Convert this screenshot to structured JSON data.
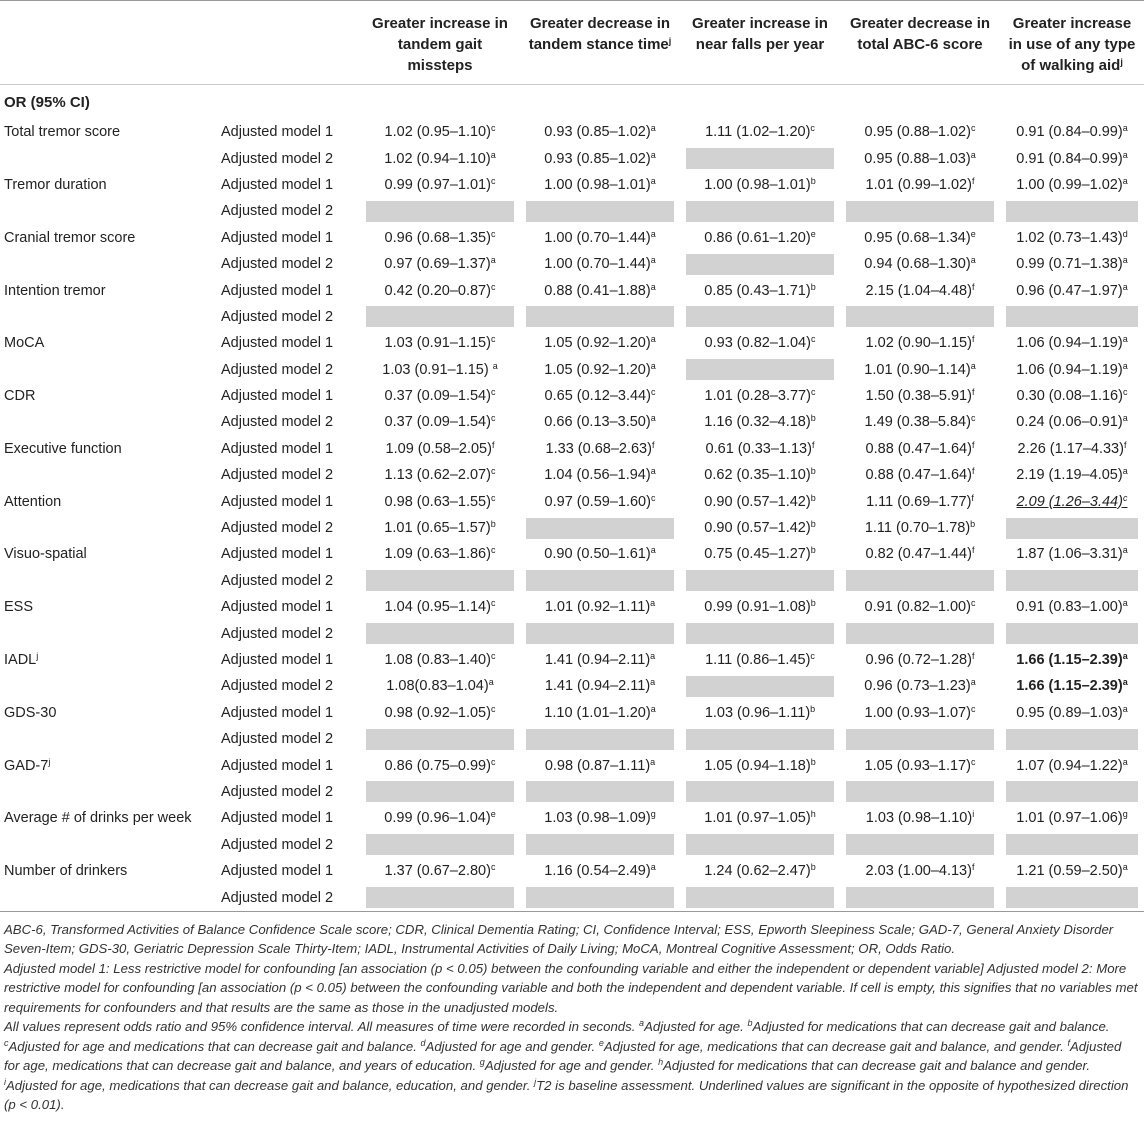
{
  "table": {
    "header": {
      "columns": [
        {
          "text": "Greater increase in tandem gait missteps"
        },
        {
          "text": "Greater decrease in tandem stance time",
          "sup": "j"
        },
        {
          "text": "Greater increase in near falls per year"
        },
        {
          "text": "Greater decrease in total ABC-6 score"
        },
        {
          "text": "Greater increase in use of any type of walking aid",
          "sup": "j"
        }
      ],
      "section": "OR (95% CI)"
    },
    "variables": [
      {
        "label": "Total tremor score",
        "rows": [
          {
            "model": "Adjusted model 1",
            "cells": [
              [
                "1.02 (0.95–1.10)",
                "c"
              ],
              [
                "0.93 (0.85–1.02)",
                "a"
              ],
              [
                "1.11 (1.02–1.20)",
                "c"
              ],
              [
                "0.95 (0.88–1.02)",
                "c"
              ],
              [
                "0.91 (0.84–0.99)",
                "a"
              ]
            ]
          },
          {
            "model": "Adjusted model 2",
            "cells": [
              [
                "1.02 (0.94–1.10)",
                "a"
              ],
              [
                "0.93 (0.85–1.02)",
                "a"
              ],
              null,
              [
                "0.95 (0.88–1.03)",
                "a"
              ],
              [
                "0.91 (0.84–0.99)",
                "a"
              ]
            ]
          }
        ]
      },
      {
        "label": "Tremor duration",
        "rows": [
          {
            "model": "Adjusted model 1",
            "cells": [
              [
                "0.99 (0.97–1.01)",
                "c"
              ],
              [
                "1.00 (0.98–1.01)",
                "a"
              ],
              [
                "1.00 (0.98–1.01)",
                "b"
              ],
              [
                "1.01 (0.99–1.02)",
                "f"
              ],
              [
                "1.00 (0.99–1.02)",
                "a"
              ]
            ]
          },
          {
            "model": "Adjusted model 2",
            "cells": [
              null,
              null,
              null,
              null,
              null
            ]
          }
        ]
      },
      {
        "label": "Cranial tremor score",
        "rows": [
          {
            "model": "Adjusted model 1",
            "cells": [
              [
                "0.96 (0.68–1.35)",
                "c"
              ],
              [
                "1.00 (0.70–1.44)",
                "a"
              ],
              [
                "0.86 (0.61–1.20)",
                "e"
              ],
              [
                "0.95 (0.68–1.34)",
                "e"
              ],
              [
                "1.02 (0.73–1.43)",
                "d"
              ]
            ]
          },
          {
            "model": "Adjusted model 2",
            "cells": [
              [
                "0.97 (0.69–1.37)",
                "a"
              ],
              [
                "1.00 (0.70–1.44)",
                "a"
              ],
              null,
              [
                "0.94 (0.68–1.30)",
                "a"
              ],
              [
                "0.99 (0.71–1.38)",
                "a"
              ]
            ]
          }
        ]
      },
      {
        "label": "Intention tremor",
        "rows": [
          {
            "model": "Adjusted model 1",
            "cells": [
              [
                "0.42 (0.20–0.87)",
                "c"
              ],
              [
                "0.88 (0.41–1.88)",
                "a"
              ],
              [
                "0.85 (0.43–1.71)",
                "b"
              ],
              [
                "2.15 (1.04–4.48)",
                "f"
              ],
              [
                "0.96 (0.47–1.97)",
                "a"
              ]
            ]
          },
          {
            "model": "Adjusted model 2",
            "cells": [
              null,
              null,
              null,
              null,
              null
            ]
          }
        ]
      },
      {
        "label": "MoCA",
        "rows": [
          {
            "model": "Adjusted model 1",
            "cells": [
              [
                "1.03 (0.91–1.15)",
                "c"
              ],
              [
                "1.05 (0.92–1.20)",
                "a"
              ],
              [
                "0.93 (0.82–1.04)",
                "c"
              ],
              [
                "1.02 (0.90–1.15)",
                "f"
              ],
              [
                "1.06 (0.94–1.19)",
                "a"
              ]
            ]
          },
          {
            "model": "Adjusted model 2",
            "cells": [
              [
                "1.03 (0.91–1.15) ",
                "a"
              ],
              [
                "1.05 (0.92–1.20)",
                "a"
              ],
              null,
              [
                "1.01 (0.90–1.14)",
                "a"
              ],
              [
                "1.06 (0.94–1.19)",
                "a"
              ]
            ]
          }
        ]
      },
      {
        "label": "CDR",
        "rows": [
          {
            "model": "Adjusted model 1",
            "cells": [
              [
                "0.37 (0.09–1.54)",
                "c"
              ],
              [
                "0.65 (0.12–3.44)",
                "c"
              ],
              [
                "1.01 (0.28–3.77)",
                "c"
              ],
              [
                "1.50 (0.38–5.91)",
                "f"
              ],
              [
                "0.30 (0.08–1.16)",
                "c"
              ]
            ]
          },
          {
            "model": "Adjusted model 2",
            "cells": [
              [
                "0.37 (0.09–1.54)",
                "c"
              ],
              [
                "0.66 (0.13–3.50)",
                "a"
              ],
              [
                "1.16 (0.32–4.18)",
                "b"
              ],
              [
                "1.49 (0.38–5.84)",
                "c"
              ],
              [
                "0.24 (0.06–0.91)",
                "a"
              ]
            ]
          }
        ]
      },
      {
        "label": "Executive function",
        "rows": [
          {
            "model": "Adjusted model 1",
            "cells": [
              [
                "1.09 (0.58–2.05)",
                "f"
              ],
              [
                "1.33 (0.68–2.63)",
                "f"
              ],
              [
                "0.61 (0.33–1.13)",
                "f"
              ],
              [
                "0.88 (0.47–1.64)",
                "f"
              ],
              [
                "2.26 (1.17–4.33)",
                "f"
              ]
            ]
          },
          {
            "model": "Adjusted model 2",
            "cells": [
              [
                "1.13 (0.62–2.07)",
                "c"
              ],
              [
                "1.04 (0.56–1.94)",
                "a"
              ],
              [
                "0.62 (0.35–1.10)",
                "b"
              ],
              [
                "0.88 (0.47–1.64)",
                "f"
              ],
              [
                "2.19 (1.19–4.05)",
                "a"
              ]
            ]
          }
        ]
      },
      {
        "label": "Attention",
        "rows": [
          {
            "model": "Adjusted model 1",
            "cells": [
              [
                "0.98 (0.63–1.55)",
                "c"
              ],
              [
                "0.97 (0.59–1.60)",
                "c"
              ],
              [
                "0.90 (0.57–1.42)",
                "b"
              ],
              [
                "1.11 (0.69–1.77)",
                "f"
              ],
              [
                "2.09 (1.26–3.44)",
                "c",
                "underline"
              ]
            ]
          },
          {
            "model": "Adjusted model 2",
            "cells": [
              [
                "1.01 (0.65–1.57)",
                "b"
              ],
              null,
              [
                "0.90 (0.57–1.42)",
                "b"
              ],
              [
                "1.11 (0.70–1.78)",
                "b"
              ],
              null
            ]
          }
        ]
      },
      {
        "label": "Visuo-spatial",
        "rows": [
          {
            "model": "Adjusted model 1",
            "cells": [
              [
                "1.09 (0.63–1.86)",
                "c"
              ],
              [
                "0.90 (0.50–1.61)",
                "a"
              ],
              [
                "0.75 (0.45–1.27)",
                "b"
              ],
              [
                "0.82 (0.47–1.44)",
                "f"
              ],
              [
                "1.87 (1.06–3.31)",
                "a"
              ]
            ]
          },
          {
            "model": "Adjusted model 2",
            "cells": [
              null,
              null,
              null,
              null,
              null
            ]
          }
        ]
      },
      {
        "label": "ESS",
        "rows": [
          {
            "model": "Adjusted model 1",
            "cells": [
              [
                "1.04 (0.95–1.14)",
                "c"
              ],
              [
                "1.01 (0.92–1.11)",
                "a"
              ],
              [
                "0.99 (0.91–1.08)",
                "b"
              ],
              [
                "0.91 (0.82–1.00)",
                "c"
              ],
              [
                "0.91 (0.83–1.00)",
                "a"
              ]
            ]
          },
          {
            "model": "Adjusted model 2",
            "cells": [
              null,
              null,
              null,
              null,
              null
            ]
          }
        ]
      },
      {
        "label": "IADL",
        "label_sup": "j",
        "rows": [
          {
            "model": "Adjusted model 1",
            "cells": [
              [
                "1.08 (0.83–1.40)",
                "c"
              ],
              [
                "1.41 (0.94–2.11)",
                "a"
              ],
              [
                "1.11 (0.86–1.45)",
                "c"
              ],
              [
                "0.96 (0.72–1.28)",
                "f"
              ],
              [
                "1.66 (1.15–2.39)",
                "a",
                "bold"
              ]
            ]
          },
          {
            "model": "Adjusted model 2",
            "cells": [
              [
                "1.08(0.83–1.04)",
                "a"
              ],
              [
                "1.41 (0.94–2.11)",
                "a"
              ],
              null,
              [
                "0.96 (0.73–1.23)",
                "a"
              ],
              [
                "1.66 (1.15–2.39)",
                "a",
                "bold"
              ]
            ]
          }
        ]
      },
      {
        "label": "GDS-30",
        "rows": [
          {
            "model": "Adjusted model 1",
            "cells": [
              [
                "0.98 (0.92–1.05)",
                "c"
              ],
              [
                "1.10 (1.01–1.20)",
                "a"
              ],
              [
                "1.03 (0.96–1.11)",
                "b"
              ],
              [
                "1.00 (0.93–1.07)",
                "c"
              ],
              [
                "0.95 (0.89–1.03)",
                "a"
              ]
            ]
          },
          {
            "model": "Adjusted model 2",
            "cells": [
              null,
              null,
              null,
              null,
              null
            ]
          }
        ]
      },
      {
        "label": "GAD-7",
        "label_sup": "j",
        "rows": [
          {
            "model": "Adjusted model 1",
            "cells": [
              [
                "0.86 (0.75–0.99)",
                "c"
              ],
              [
                "0.98 (0.87–1.11)",
                "a"
              ],
              [
                "1.05 (0.94–1.18)",
                "b"
              ],
              [
                "1.05 (0.93–1.17)",
                "c"
              ],
              [
                "1.07 (0.94–1.22)",
                "a"
              ]
            ]
          },
          {
            "model": "Adjusted model 2",
            "cells": [
              null,
              null,
              null,
              null,
              null
            ]
          }
        ]
      },
      {
        "label": "Average # of drinks per week",
        "rows": [
          {
            "model": "Adjusted model 1",
            "cells": [
              [
                "0.99 (0.96–1.04)",
                "e"
              ],
              [
                "1.03 (0.98–1.09)",
                "g"
              ],
              [
                "1.01 (0.97–1.05)",
                "h"
              ],
              [
                "1.03 (0.98–1.10)",
                "i"
              ],
              [
                "1.01 (0.97–1.06)",
                "g"
              ]
            ]
          },
          {
            "model": "Adjusted model 2",
            "cells": [
              null,
              null,
              null,
              null,
              null
            ]
          }
        ]
      },
      {
        "label": "Number of drinkers",
        "rows": [
          {
            "model": "Adjusted model 1",
            "cells": [
              [
                "1.37 (0.67–2.80)",
                "c"
              ],
              [
                "1.16 (0.54–2.49)",
                "a"
              ],
              [
                "1.24 (0.62–2.47)",
                "b"
              ],
              [
                "2.03 (1.00–4.13)",
                "f"
              ],
              [
                "1.21 (0.59–2.50)",
                "a"
              ]
            ]
          },
          {
            "model": "Adjusted model 2",
            "cells": [
              null,
              null,
              null,
              null,
              null
            ]
          }
        ]
      }
    ]
  },
  "footnotes": {
    "abbreviations": "ABC-6, Transformed Activities of Balance Confidence Scale score; CDR, Clinical Dementia Rating; CI, Confidence Interval; ESS, Epworth Sleepiness Scale; GAD-7, General Anxiety Disorder Seven-Item; GDS-30, Geriatric Depression Scale Thirty-Item; IADL, Instrumental Activities of Daily Living; MoCA, Montreal Cognitive Assessment; OR, Odds Ratio.",
    "models": "Adjusted model 1: Less restrictive model for confounding [an association (p < 0.05) between the confounding variable and either the independent or dependent variable] Adjusted model 2: More restrictive model for confounding [an association (p < 0.05) between the confounding variable and both the independent and dependent variable. If cell is empty, this signifies that no variables met requirements for confounders and that results are the same as those in the unadjusted models.",
    "notes": [
      {
        "text": "All values represent odds ratio and 95% confidence interval. All measures of time were recorded in seconds. "
      },
      {
        "sup": "a",
        "text": "Adjusted for age. "
      },
      {
        "sup": "b",
        "text": "Adjusted for medications that can decrease gait and balance. "
      },
      {
        "sup": "c",
        "text": "Adjusted for age and medications that can decrease gait and balance. "
      },
      {
        "sup": "d",
        "text": "Adjusted for age and gender. "
      },
      {
        "sup": "e",
        "text": "Adjusted for age, medications that can decrease gait and balance, and gender. "
      },
      {
        "sup": "f",
        "text": "Adjusted for age, medications that can decrease gait and balance, and years of education. "
      },
      {
        "sup": "g",
        "text": "Adjusted for age and gender. "
      },
      {
        "sup": "h",
        "text": "Adjusted for medications that can decrease gait and balance and gender. "
      },
      {
        "sup": "i",
        "text": "Adjusted for age, medications that can decrease gait and balance, education, and gender. "
      },
      {
        "sup": "j",
        "text": "T2 is baseline assessment. Underlined values are significant in the opposite of hypothesized direction (p < 0.01)."
      }
    ]
  }
}
